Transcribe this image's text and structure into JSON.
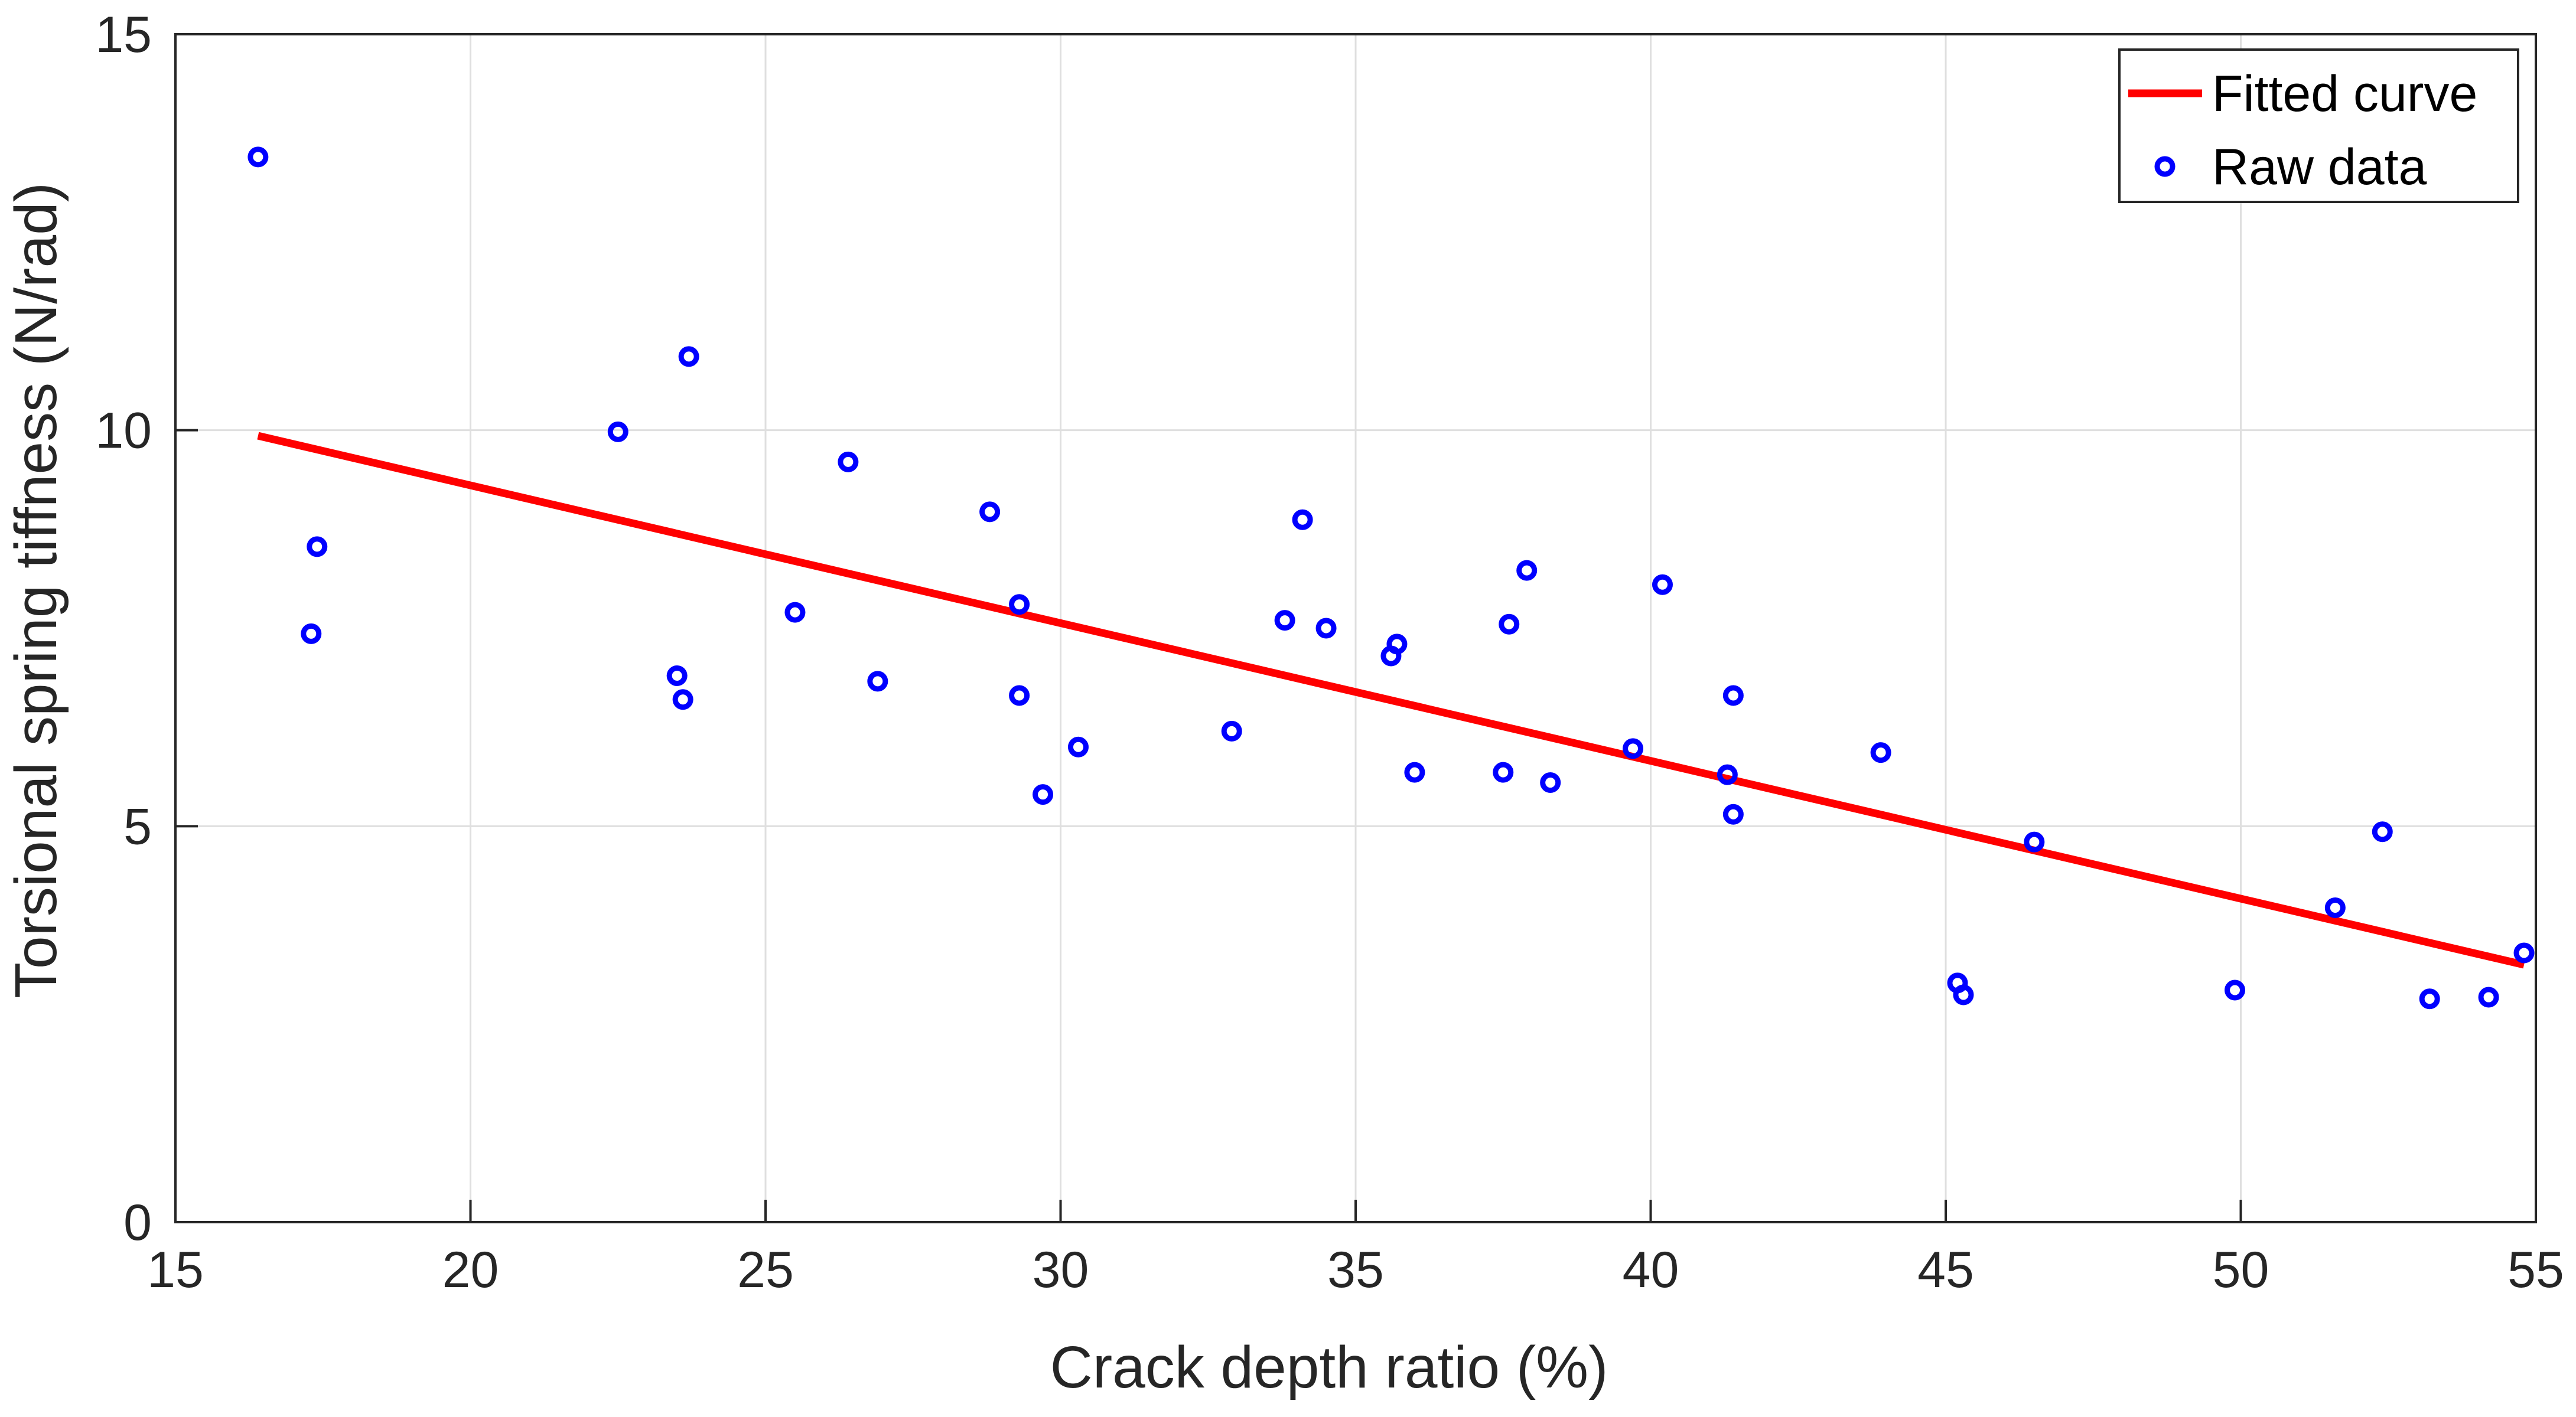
{
  "chart_data": {
    "type": "scatter",
    "title": "",
    "xlabel": "Crack depth ratio (%)",
    "ylabel": "Torsional spring tiffness (N/rad)",
    "xlim": [
      15,
      55
    ],
    "ylim": [
      0,
      15
    ],
    "xticks": [
      15,
      20,
      25,
      30,
      35,
      40,
      45,
      50,
      55
    ],
    "yticks": [
      0,
      5,
      10,
      15
    ],
    "grid": true,
    "legend_position": "top-right",
    "series": [
      {
        "name": "Fitted curve",
        "kind": "line",
        "color": "#ff0000",
        "x": [
          16.4,
          54.8
        ],
        "y": [
          9.93,
          3.25
        ]
      },
      {
        "name": "Raw data",
        "kind": "scatter",
        "marker": "circle",
        "color": "#0000ff",
        "x": [
          16.4,
          17.4,
          17.3,
          22.5,
          23.7,
          23.5,
          23.6,
          25.5,
          26.4,
          26.9,
          28.8,
          29.3,
          29.3,
          29.7,
          30.3,
          32.9,
          33.8,
          34.1,
          34.5,
          35.6,
          35.7,
          36.0,
          37.5,
          37.6,
          37.9,
          38.3,
          39.7,
          40.2,
          41.3,
          41.4,
          41.4,
          43.9,
          45.2,
          45.3,
          46.5,
          49.9,
          51.6,
          52.4,
          53.2,
          54.2,
          54.8
        ],
        "y": [
          13.45,
          8.53,
          7.43,
          9.98,
          10.93,
          6.9,
          6.6,
          7.7,
          9.6,
          6.83,
          8.97,
          7.8,
          6.65,
          5.4,
          6.0,
          6.2,
          7.6,
          8.87,
          7.5,
          7.15,
          7.3,
          5.68,
          5.68,
          7.55,
          8.23,
          5.55,
          5.98,
          8.05,
          5.65,
          5.15,
          6.65,
          5.93,
          3.02,
          2.87,
          4.8,
          2.93,
          3.97,
          4.93,
          2.82,
          2.84,
          3.4
        ]
      }
    ]
  }
}
